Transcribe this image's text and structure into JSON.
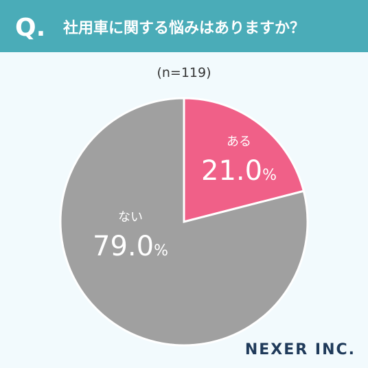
{
  "header": {
    "mark": "Q.",
    "title": "社用車に関する悩みはありますか？"
  },
  "chart_data": {
    "type": "pie",
    "subtitle": "(n=119)",
    "categories": [
      "ある",
      "ない"
    ],
    "values": [
      21.0,
      79.0
    ],
    "value_labels": [
      "21.0%",
      "79.0%"
    ],
    "colors": [
      "#f06088",
      "#a0a0a0"
    ]
  },
  "logo": "NEXER INC."
}
